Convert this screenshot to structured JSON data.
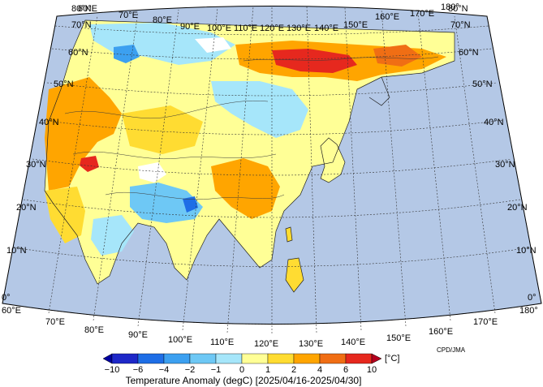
{
  "map": {
    "longitude_labels": [
      "60°E",
      "70°E",
      "80°E",
      "90°E",
      "100°E",
      "110°E",
      "120°E",
      "130°E",
      "140°E",
      "150°E",
      "160°E",
      "170°E",
      "180°"
    ],
    "top_longitude_labels": [
      "60°E",
      "70°E",
      "80°E",
      "90°E",
      "100°E",
      "110°E",
      "120°E",
      "130°E",
      "140°E",
      "150°E",
      "160°E",
      "170°E",
      "180°"
    ],
    "latitude_labels": [
      "0°",
      "10°N",
      "20°N",
      "30°N",
      "40°N",
      "50°N",
      "60°N",
      "70°N",
      "80°N"
    ],
    "credit": "CPD/JMA"
  },
  "colorbar": {
    "tick_labels": [
      "−10",
      "−6",
      "−4",
      "−2",
      "−1",
      "0",
      "1",
      "2",
      "4",
      "6",
      "10"
    ],
    "unit": "[°C]",
    "colors": [
      "#1e28c8",
      "#1e6ee6",
      "#3ca0f0",
      "#6ec8f5",
      "#a6e6fa",
      "#ffff96",
      "#ffdc32",
      "#ffa500",
      "#f06e14",
      "#e6281e"
    ],
    "title": "Temperature Anomaly (degC) [2025/04/16-2025/04/30]"
  },
  "colors": {
    "ocean": "#b4c8e6",
    "missing": "#ffffff"
  }
}
